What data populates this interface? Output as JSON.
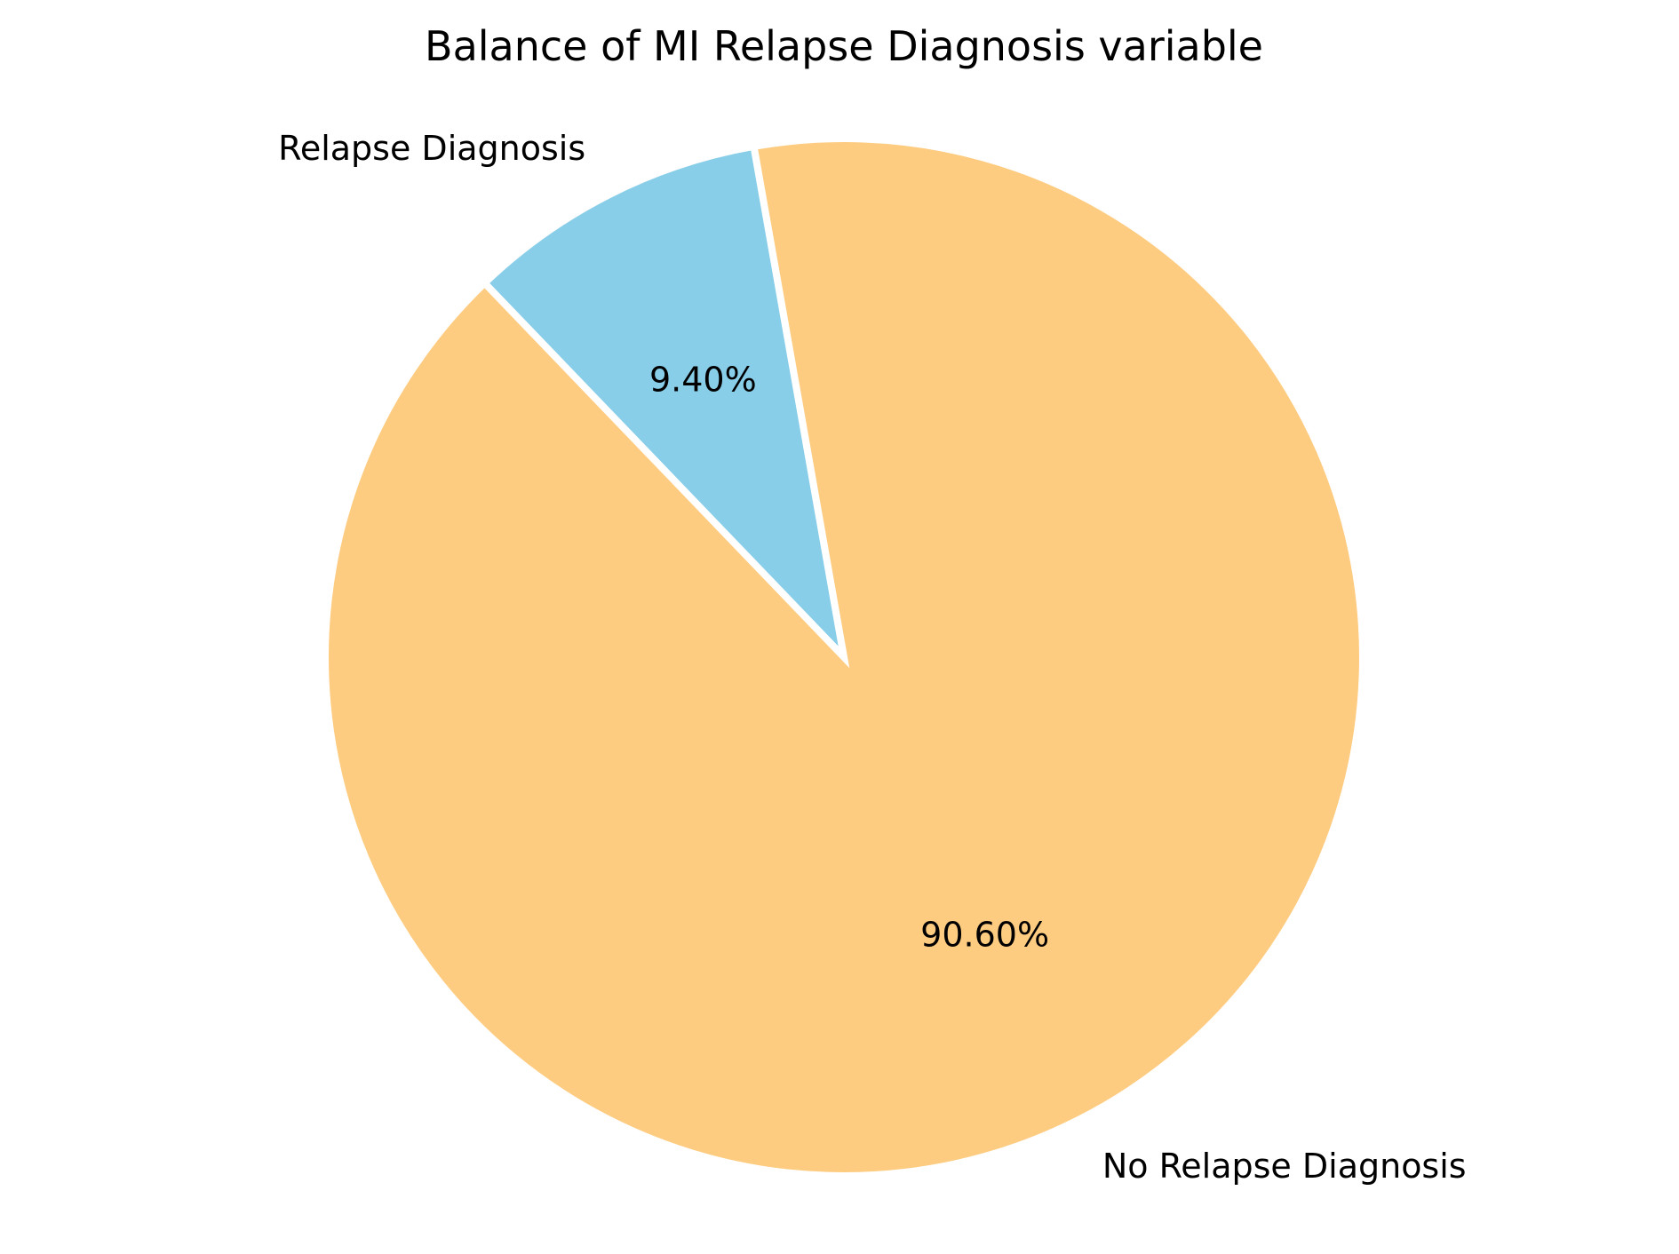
{
  "chart_data": {
    "type": "pie",
    "title": "Balance of MI Relapse Diagnosis variable",
    "slices": [
      {
        "label": "Relapse Diagnosis",
        "value": 9.4,
        "pct_label": "9.40%",
        "color": "#89CEE9"
      },
      {
        "label": "No Relapse Diagnosis",
        "value": 90.6,
        "pct_label": "90.60%",
        "color": "#FECC81"
      }
    ],
    "edge_color": "#ffffff"
  }
}
